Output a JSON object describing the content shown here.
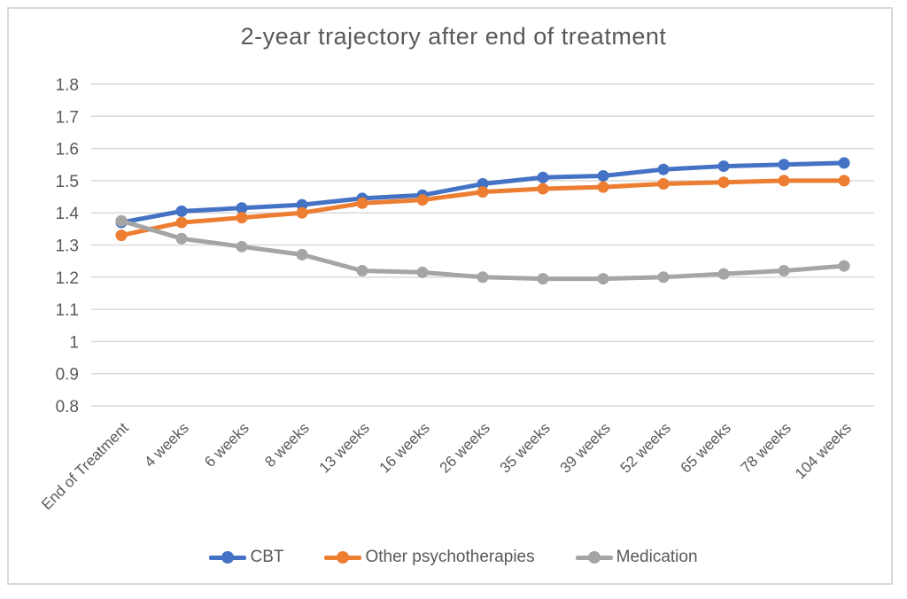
{
  "page": {
    "background_color": "#FFFFFF",
    "frame_border_color": "#D9D9D9"
  },
  "chart_data": {
    "type": "line",
    "title": "2-year trajectory after end of treatment",
    "xlabel": "",
    "ylabel": "",
    "categories": [
      "End of Treatment",
      "4 weeks",
      "6 weeks",
      "8 weeks",
      "13 weeks",
      "16 weeks",
      "26 weeks",
      "35 weeks",
      "39 weeks",
      "52 weeks",
      "65 weeks",
      "78 weeks",
      "104 weeks"
    ],
    "series": [
      {
        "name": "CBT",
        "color": "#4472C4",
        "values": [
          1.37,
          1.405,
          1.415,
          1.425,
          1.445,
          1.455,
          1.49,
          1.51,
          1.515,
          1.535,
          1.545,
          1.55,
          1.555
        ]
      },
      {
        "name": "Other psychotherapies",
        "color": "#ED7D31",
        "values": [
          1.33,
          1.37,
          1.385,
          1.4,
          1.43,
          1.44,
          1.465,
          1.475,
          1.48,
          1.49,
          1.495,
          1.5,
          1.5
        ]
      },
      {
        "name": "Medication",
        "color": "#A5A5A5",
        "values": [
          1.375,
          1.32,
          1.295,
          1.27,
          1.22,
          1.215,
          1.2,
          1.195,
          1.195,
          1.2,
          1.21,
          1.22,
          1.235
        ]
      }
    ],
    "ylim": [
      0.8,
      1.8
    ],
    "y_tick_step": 0.1,
    "y_tick_labels": [
      "1.8",
      "1.7",
      "1.6",
      "1.5",
      "1.4",
      "1.3",
      "1.2",
      "1.1",
      "1",
      "0.9",
      "0.8"
    ],
    "grid": "horizontal-only",
    "gridline_color": "#D9D9D9",
    "axis_text_color": "#595959",
    "x_label_rotation_deg": 45,
    "legend_position": "bottom",
    "marker_style": "filled-circle"
  }
}
